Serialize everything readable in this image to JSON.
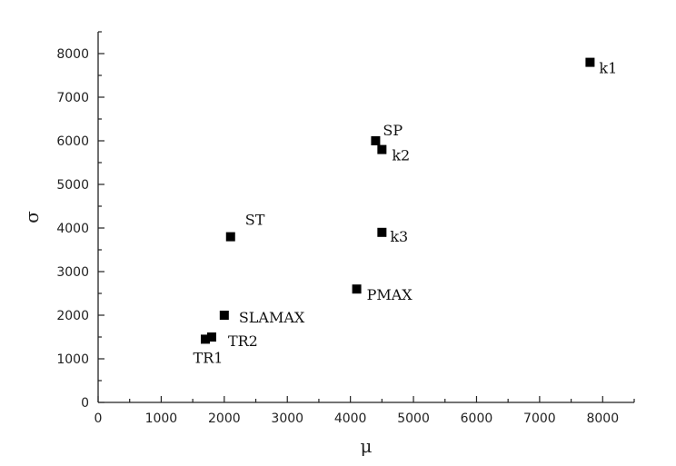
{
  "chart_data": {
    "type": "scatter",
    "title": "",
    "xlabel": "μ",
    "ylabel": "σ",
    "xlim": [
      0,
      8500
    ],
    "ylim": [
      0,
      8500
    ],
    "x_ticks": [
      0,
      1000,
      2000,
      3000,
      4000,
      5000,
      6000,
      7000,
      8000
    ],
    "y_ticks": [
      0,
      1000,
      2000,
      3000,
      4000,
      5000,
      6000,
      7000,
      8000
    ],
    "grid": false,
    "marker": "square",
    "marker_color": "#000000",
    "points": [
      {
        "label": "k1",
        "x": 7800,
        "y": 7800
      },
      {
        "label": "SP",
        "x": 4400,
        "y": 6000
      },
      {
        "label": "k2",
        "x": 4500,
        "y": 5800
      },
      {
        "label": "k3",
        "x": 4500,
        "y": 3900
      },
      {
        "label": "ST",
        "x": 2100,
        "y": 3800
      },
      {
        "label": "PMAX",
        "x": 4100,
        "y": 2600
      },
      {
        "label": "SLAMAX",
        "x": 2000,
        "y": 2000
      },
      {
        "label": "TR2",
        "x": 1800,
        "y": 1500
      },
      {
        "label": "TR1",
        "x": 1700,
        "y": 1450
      }
    ]
  }
}
